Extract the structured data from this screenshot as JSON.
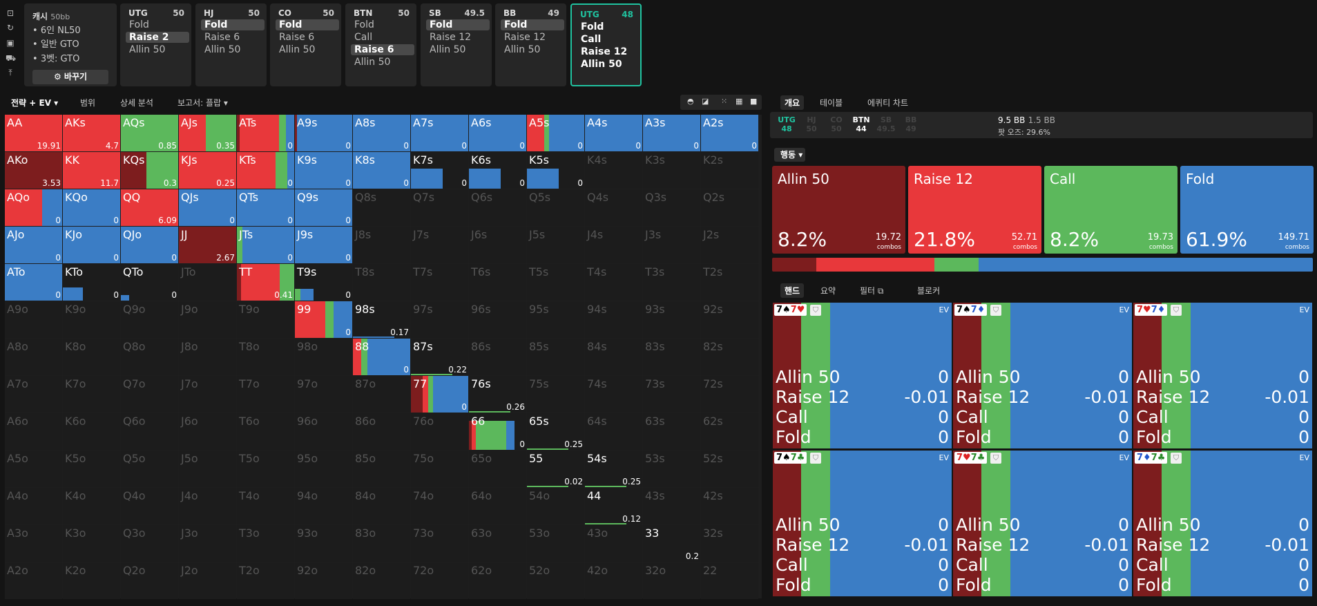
{
  "colors": {
    "allin": "#7d1d1e",
    "raise": "#e8383b",
    "call": "#5cb85c",
    "fold": "#3b7dc5",
    "accent": "#20c3a0"
  },
  "sidebar_icons": [
    "bookmark-icon",
    "refresh-icon",
    "save-icon",
    "car-icon",
    "upload-icon"
  ],
  "game_info": {
    "title": "캐시",
    "stack": "50bb",
    "lines": [
      "6인 NL50",
      "일반 GTO",
      "3벳: GTO"
    ],
    "change_label": "⚙ 바꾸기"
  },
  "positions": [
    {
      "name": "UTG",
      "stack": "50",
      "actions": [
        "Fold",
        "Raise 2",
        "Allin 50"
      ],
      "selected": 1
    },
    {
      "name": "HJ",
      "stack": "50",
      "actions": [
        "Fold",
        "Raise 6",
        "Allin 50"
      ],
      "selected": 0
    },
    {
      "name": "CO",
      "stack": "50",
      "actions": [
        "Fold",
        "Raise 6",
        "Allin 50"
      ],
      "selected": 0
    },
    {
      "name": "BTN",
      "stack": "50",
      "actions": [
        "Fold",
        "Call",
        "Raise 6",
        "Allin 50"
      ],
      "selected": 2
    },
    {
      "name": "SB",
      "stack": "49.5",
      "actions": [
        "Fold",
        "Raise 12",
        "Allin 50"
      ],
      "selected": 0
    },
    {
      "name": "BB",
      "stack": "49",
      "actions": [
        "Fold",
        "Raise 12",
        "Allin 50"
      ],
      "selected": 0
    },
    {
      "name": "UTG",
      "stack": "48",
      "actions": [
        "Fold",
        "Call",
        "Raise 12",
        "Allin 50"
      ],
      "selected": -1,
      "current": true
    }
  ],
  "left_tabs": [
    "전략 + EV ▾",
    "범위",
    "상세 분석",
    "보고서: 플랍 ▾"
  ],
  "grid_tools": [
    "◓",
    "◪",
    "⁙",
    "▦",
    "■"
  ],
  "ranks": [
    "A",
    "K",
    "Q",
    "J",
    "T",
    "9",
    "8",
    "7",
    "6",
    "5",
    "4",
    "3",
    "2"
  ],
  "grid_cells": [
    {
      "r": 0,
      "c": 0,
      "v": "19.91",
      "s": [
        0,
        1,
        0,
        0
      ]
    },
    {
      "r": 0,
      "c": 1,
      "v": "4.7",
      "s": [
        0,
        1,
        0,
        0
      ]
    },
    {
      "r": 0,
      "c": 2,
      "v": "0.85",
      "s": [
        0,
        0,
        1,
        0
      ]
    },
    {
      "r": 0,
      "c": 3,
      "v": "0.35",
      "s": [
        0,
        0.47,
        0.53,
        0
      ]
    },
    {
      "r": 0,
      "c": 4,
      "v": "0",
      "s": [
        0.05,
        0.68,
        0.12,
        0.15
      ]
    },
    {
      "r": 0,
      "c": 5,
      "v": "0",
      "s": [
        0.04,
        0,
        0,
        0.96
      ]
    },
    {
      "r": 0,
      "c": 6,
      "v": "0",
      "s": [
        0,
        0,
        0,
        1
      ]
    },
    {
      "r": 0,
      "c": 7,
      "v": "0",
      "s": [
        0,
        0,
        0,
        1
      ]
    },
    {
      "r": 0,
      "c": 8,
      "v": "0",
      "s": [
        0,
        0,
        0,
        1
      ]
    },
    {
      "r": 0,
      "c": 9,
      "v": "0",
      "s": [
        0,
        0.3,
        0.08,
        0.62
      ]
    },
    {
      "r": 0,
      "c": 10,
      "v": "0",
      "s": [
        0,
        0,
        0,
        1
      ]
    },
    {
      "r": 0,
      "c": 11,
      "v": "0",
      "s": [
        0,
        0,
        0,
        1
      ]
    },
    {
      "r": 0,
      "c": 12,
      "v": "0",
      "s": [
        0,
        0,
        0,
        1
      ]
    },
    {
      "r": 1,
      "c": 0,
      "v": "3.53",
      "s": [
        1,
        0,
        0,
        0
      ]
    },
    {
      "r": 1,
      "c": 1,
      "v": "11.7",
      "s": [
        0,
        1,
        0,
        0
      ]
    },
    {
      "r": 1,
      "c": 2,
      "v": "0.3",
      "s": [
        0.45,
        0,
        0.55,
        0
      ]
    },
    {
      "r": 1,
      "c": 3,
      "v": "0.25",
      "s": [
        0,
        1,
        0,
        0
      ]
    },
    {
      "r": 1,
      "c": 4,
      "v": "0",
      "s": [
        0,
        0.68,
        0.2,
        0.12
      ]
    },
    {
      "r": 1,
      "c": 5,
      "v": "0",
      "s": [
        0,
        0,
        0,
        1
      ]
    },
    {
      "r": 1,
      "c": 6,
      "v": "0",
      "s": [
        0,
        0,
        0,
        1
      ]
    },
    {
      "r": 1,
      "c": 7,
      "v": "0",
      "s": [
        0,
        0,
        0,
        0.55
      ]
    },
    {
      "r": 1,
      "c": 8,
      "v": "0",
      "s": [
        0,
        0,
        0,
        0.55
      ]
    },
    {
      "r": 1,
      "c": 9,
      "v": "0",
      "s": [
        0,
        0,
        0,
        0.55
      ]
    },
    {
      "r": 2,
      "c": 0,
      "v": "0",
      "s": [
        0,
        0.65,
        0,
        0.35
      ]
    },
    {
      "r": 2,
      "c": 1,
      "v": "0",
      "s": [
        0,
        0,
        0,
        1
      ]
    },
    {
      "r": 2,
      "c": 2,
      "v": "6.09",
      "s": [
        0,
        1,
        0,
        0
      ]
    },
    {
      "r": 2,
      "c": 3,
      "v": "0",
      "s": [
        0,
        0,
        0,
        1
      ]
    },
    {
      "r": 2,
      "c": 4,
      "v": "0",
      "s": [
        0,
        0,
        0,
        1
      ]
    },
    {
      "r": 2,
      "c": 5,
      "v": "0",
      "s": [
        0,
        0,
        0,
        1
      ]
    },
    {
      "r": 3,
      "c": 0,
      "v": "0",
      "s": [
        0,
        0,
        0,
        1
      ]
    },
    {
      "r": 3,
      "c": 1,
      "v": "0",
      "s": [
        0,
        0,
        0,
        1
      ]
    },
    {
      "r": 3,
      "c": 2,
      "v": "0",
      "s": [
        0,
        0,
        0,
        1
      ]
    },
    {
      "r": 3,
      "c": 3,
      "v": "2.67",
      "s": [
        1,
        0,
        0,
        0
      ]
    },
    {
      "r": 3,
      "c": 4,
      "v": "0",
      "s": [
        0,
        0,
        0.1,
        0.9
      ]
    },
    {
      "r": 3,
      "c": 5,
      "v": "0",
      "s": [
        0,
        0,
        0,
        1
      ]
    },
    {
      "r": 4,
      "c": 0,
      "v": "0",
      "s": [
        0,
        0,
        0,
        1
      ]
    },
    {
      "r": 4,
      "c": 1,
      "v": "0",
      "s": [
        0,
        0,
        0,
        0.35
      ]
    },
    {
      "r": 4,
      "c": 2,
      "v": "0",
      "s": [
        0,
        0,
        0,
        0.15
      ]
    },
    {
      "r": 4,
      "c": 4,
      "v": "0.41",
      "s": [
        0.07,
        0.68,
        0.25,
        0
      ]
    },
    {
      "r": 4,
      "c": 5,
      "v": "0",
      "s": [
        0,
        0,
        0.1,
        0.23
      ]
    },
    {
      "r": 5,
      "c": 5,
      "v": "0",
      "s": [
        0,
        0.53,
        0.15,
        0.32
      ]
    },
    {
      "r": 5,
      "c": 6,
      "v": "0.17",
      "s": [
        0,
        0,
        0,
        0.01
      ]
    },
    {
      "r": 6,
      "c": 6,
      "v": "0",
      "s": [
        0,
        0.15,
        0.1,
        0.75
      ]
    },
    {
      "r": 6,
      "c": 7,
      "v": "0.22",
      "s": [
        0,
        0,
        0.01,
        0
      ]
    },
    {
      "r": 7,
      "c": 7,
      "v": "0",
      "s": [
        0.2,
        0.1,
        0.08,
        0.62
      ]
    },
    {
      "r": 7,
      "c": 8,
      "v": "0.26",
      "s": [
        0,
        0,
        0.04,
        0
      ]
    },
    {
      "r": 8,
      "c": 8,
      "v": "0",
      "s": [
        0.05,
        0.07,
        0.53,
        0.15
      ]
    },
    {
      "r": 8,
      "c": 9,
      "v": "0.25",
      "s": [
        0,
        0,
        0.01,
        0
      ]
    },
    {
      "r": 9,
      "c": 9,
      "v": "0.02",
      "s": [
        0,
        0,
        0.04,
        0
      ]
    },
    {
      "r": 9,
      "c": 10,
      "v": "0.25",
      "s": [
        0,
        0,
        0.01,
        0
      ]
    },
    {
      "r": 10,
      "c": 10,
      "v": "0.12",
      "s": [
        0,
        0,
        0.01,
        0
      ]
    },
    {
      "r": 11,
      "c": 11,
      "v": "0.2",
      "s": [
        0,
        0,
        0,
        0
      ]
    }
  ],
  "right_tabs": [
    "개요",
    "테이블",
    "에퀴티 차트"
  ],
  "right_positions": [
    {
      "name": "UTG",
      "stack": "48",
      "state": "act"
    },
    {
      "name": "HJ",
      "stack": "50",
      "state": "off"
    },
    {
      "name": "CO",
      "stack": "50",
      "state": "off"
    },
    {
      "name": "BTN",
      "stack": "44",
      "state": "btn"
    },
    {
      "name": "SB",
      "stack": "49.5",
      "state": "off"
    },
    {
      "name": "BB",
      "stack": "49",
      "state": "off"
    }
  ],
  "pot": {
    "value": "9.5 BB",
    "extra": "1.5 BB",
    "odds_label": "팟 오즈:",
    "odds": "29.6%"
  },
  "action_dropdown": "행동 ▾",
  "action_boxes": [
    {
      "name": "Allin 50",
      "pct": "8.2%",
      "combos": "19.72",
      "combos_label": "combos",
      "key": "allin"
    },
    {
      "name": "Raise 12",
      "pct": "21.8%",
      "combos": "52.71",
      "combos_label": "combos",
      "key": "raise"
    },
    {
      "name": "Call",
      "pct": "8.2%",
      "combos": "19.73",
      "combos_label": "combos",
      "key": "call"
    },
    {
      "name": "Fold",
      "pct": "61.9%",
      "combos": "149.71",
      "combos_label": "combos",
      "key": "fold"
    }
  ],
  "freq_fractions": {
    "allin": 0.082,
    "raise": 0.218,
    "call": 0.082,
    "fold": 0.619
  },
  "bottom_tabs": [
    "핸드",
    "요약",
    "필터 ⧉",
    "블로커"
  ],
  "hands": [
    {
      "cards": [
        [
          "7",
          "♠",
          "#000"
        ],
        [
          "7",
          "♥",
          "#d22"
        ]
      ],
      "ev": "EV",
      "rows": [
        [
          "Allin 50",
          "0"
        ],
        [
          "Raise 12",
          "-0.01"
        ],
        [
          "Call",
          "0"
        ],
        [
          "Fold",
          "0"
        ]
      ]
    },
    {
      "cards": [
        [
          "7",
          "♠",
          "#000"
        ],
        [
          "7",
          "♦",
          "#2255cc"
        ]
      ],
      "ev": "EV",
      "rows": [
        [
          "Allin 50",
          "0"
        ],
        [
          "Raise 12",
          "-0.01"
        ],
        [
          "Call",
          "0"
        ],
        [
          "Fold",
          "0"
        ]
      ]
    },
    {
      "cards": [
        [
          "7",
          "♥",
          "#d22"
        ],
        [
          "7",
          "♦",
          "#2255cc"
        ]
      ],
      "ev": "EV",
      "rows": [
        [
          "Allin 50",
          "0"
        ],
        [
          "Raise 12",
          "-0.01"
        ],
        [
          "Call",
          "0"
        ],
        [
          "Fold",
          "0"
        ]
      ]
    },
    {
      "cards": [
        [
          "7",
          "♠",
          "#000"
        ],
        [
          "7",
          "♣",
          "#2a8a2a"
        ]
      ],
      "ev": "EV",
      "rows": [
        [
          "Allin 50",
          "0"
        ],
        [
          "Raise 12",
          "-0.01"
        ],
        [
          "Call",
          "0"
        ],
        [
          "Fold",
          "0"
        ]
      ]
    },
    {
      "cards": [
        [
          "7",
          "♥",
          "#d22"
        ],
        [
          "7",
          "♣",
          "#2a8a2a"
        ]
      ],
      "ev": "EV",
      "rows": [
        [
          "Allin 50",
          "0"
        ],
        [
          "Raise 12",
          "-0.01"
        ],
        [
          "Call",
          "0"
        ],
        [
          "Fold",
          "0"
        ]
      ]
    },
    {
      "cards": [
        [
          "7",
          "♦",
          "#2255cc"
        ],
        [
          "7",
          "♣",
          "#2a8a2a"
        ]
      ],
      "ev": "EV",
      "rows": [
        [
          "Allin 50",
          "0"
        ],
        [
          "Raise 12",
          "-0.01"
        ],
        [
          "Call",
          "0"
        ],
        [
          "Fold",
          "0"
        ]
      ]
    }
  ],
  "hand_mix": {
    "allin": 0.16,
    "call": 0.16,
    "fold": 0.68
  }
}
